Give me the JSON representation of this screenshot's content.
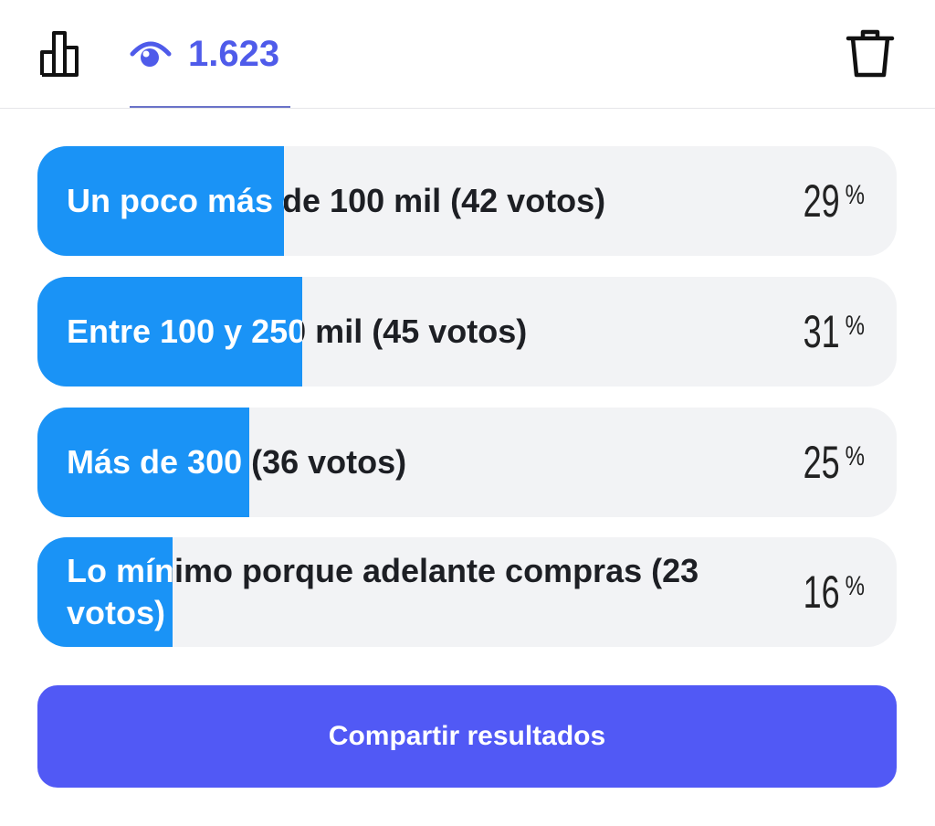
{
  "header": {
    "views_count": "1.623",
    "icons": {
      "stats": "bar-chart-icon",
      "views": "eye-icon",
      "delete": "trash-icon"
    },
    "accent_color": "#4f5bea"
  },
  "poll": {
    "options": [
      {
        "label": "Un poco más de 100 mil (42 votos)",
        "percent": 29,
        "percent_text": "29",
        "fill_fraction": 0.287
      },
      {
        "label": "Entre 100 y 250 mil (45 votos)",
        "percent": 31,
        "percent_text": "31",
        "fill_fraction": 0.308
      },
      {
        "label": "Más de 300 (36 votos)",
        "percent": 25,
        "percent_text": "25",
        "fill_fraction": 0.247
      },
      {
        "label": "Lo mínimo porque adelante compras (23 votos)",
        "percent": 16,
        "percent_text": "16",
        "fill_fraction": 0.157
      }
    ],
    "percent_sign": "%",
    "fill_color": "#1a93f6"
  },
  "share_button": {
    "label": "Compartir resultados",
    "color": "#5159f5"
  }
}
